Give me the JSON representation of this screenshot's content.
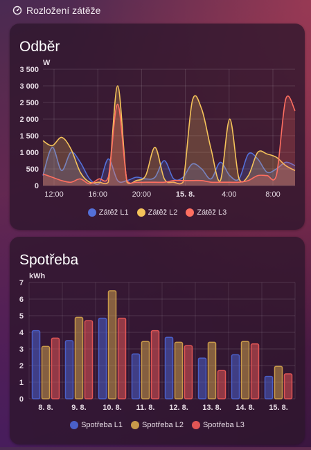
{
  "header": {
    "title": "Rozložení zátěže",
    "icon": "gauge-icon"
  },
  "cards": {
    "odber": {
      "title": "Odběr",
      "unit": "W",
      "chart_data": {
        "type": "area",
        "x_ticks": [
          "12:00",
          "16:00",
          "20:00",
          "15. 8.",
          "4:00",
          "8:00"
        ],
        "y_ticks": [
          "0",
          "500",
          "1 000",
          "1 500",
          "2 000",
          "2 500",
          "3 000",
          "3 500"
        ],
        "ylim": [
          0,
          3500
        ],
        "legend_placement": "bottom",
        "series": [
          {
            "name": "Zátěž L1",
            "color": "#5470d8",
            "values": [
              300,
              1150,
              450,
              1000,
              700,
              200,
              50,
              800,
              150,
              150,
              250,
              200,
              250,
              750,
              200,
              250,
              650,
              500,
              200,
              700,
              300,
              200,
              950,
              800,
              400,
              500,
              700,
              600
            ]
          },
          {
            "name": "Zátěž L2",
            "color": "#f5c35a",
            "values": [
              1350,
              1200,
              1450,
              1100,
              400,
              100,
              100,
              100,
              3000,
              100,
              150,
              300,
              1150,
              200,
              100,
              100,
              2550,
              2300,
              1100,
              150,
              2000,
              200,
              300,
              1000,
              950,
              850,
              600,
              450
            ]
          },
          {
            "name": "Zátěž L3",
            "color": "#ff6f61",
            "values": [
              350,
              250,
              150,
              100,
              200,
              50,
              200,
              250,
              2450,
              150,
              100,
              100,
              100,
              100,
              150,
              150,
              150,
              150,
              100,
              100,
              100,
              100,
              150,
              300,
              300,
              300,
              2600,
              2250
            ]
          }
        ]
      }
    },
    "spotreba": {
      "title": "Spotřeba",
      "unit": "kWh",
      "chart_data": {
        "type": "bar",
        "categories": [
          "8. 8.",
          "9. 8.",
          "10. 8.",
          "11. 8.",
          "12. 8.",
          "13. 8.",
          "14. 8.",
          "15. 8."
        ],
        "y_ticks": [
          "0",
          "1",
          "2",
          "3",
          "4",
          "5",
          "6",
          "7"
        ],
        "ylim": [
          0,
          7
        ],
        "legend_placement": "bottom",
        "series": [
          {
            "name": "Spotřeba L1",
            "color": "#4a5fc8",
            "values": [
              4.1,
              3.5,
              4.85,
              2.7,
              3.7,
              2.45,
              2.65,
              1.35
            ]
          },
          {
            "name": "Spotřeba L2",
            "color": "#c99a4a",
            "values": [
              3.15,
              4.9,
              6.5,
              3.45,
              3.4,
              3.4,
              3.45,
              1.95
            ]
          },
          {
            "name": "Spotřeba L3",
            "color": "#e05555",
            "values": [
              3.65,
              4.7,
              4.85,
              4.1,
              3.2,
              1.7,
              3.3,
              1.5
            ]
          }
        ]
      }
    }
  }
}
